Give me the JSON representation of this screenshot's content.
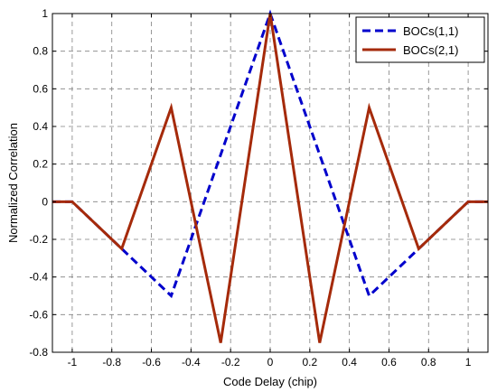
{
  "chart_data": {
    "type": "line",
    "xlabel": "Code Delay (chip)",
    "ylabel": "Normalized Correlation",
    "xlim": [
      -1.1,
      1.1
    ],
    "ylim": [
      -0.8,
      1.0
    ],
    "xticks": [
      -1,
      -0.8,
      -0.6,
      -0.4,
      -0.2,
      0,
      0.2,
      0.4,
      0.6,
      0.8,
      1
    ],
    "xtick_labels": [
      "-1",
      "-0.8",
      "-0.6",
      "-0.4",
      "-0.2",
      "0",
      "0.2",
      "0.4",
      "0.6",
      "0.8",
      "1"
    ],
    "yticks": [
      -0.8,
      -0.6,
      -0.4,
      -0.2,
      0,
      0.2,
      0.4,
      0.6,
      0.8,
      1
    ],
    "ytick_labels": [
      "-0.8",
      "-0.6",
      "-0.4",
      "-0.2",
      "0",
      "0.2",
      "0.4",
      "0.6",
      "0.8",
      "1"
    ],
    "grid": true,
    "legend_position": "top-right",
    "series": [
      {
        "name": "BOCs(1,1)",
        "color": "#0000cc",
        "style": "dashed",
        "x": [
          -1.1,
          -1.0,
          -0.5,
          0.0,
          0.5,
          1.0,
          1.1
        ],
        "y": [
          0,
          0,
          -0.5,
          1.0,
          -0.5,
          0,
          0
        ]
      },
      {
        "name": "BOCs(2,1)",
        "color": "#a52a0a",
        "style": "solid",
        "x": [
          -1.1,
          -1.0,
          -0.75,
          -0.5,
          -0.25,
          0.0,
          0.25,
          0.5,
          0.75,
          1.0,
          1.1
        ],
        "y": [
          0,
          0,
          -0.25,
          0.5,
          -0.75,
          1.0,
          -0.75,
          0.5,
          -0.25,
          0,
          0
        ]
      }
    ]
  }
}
